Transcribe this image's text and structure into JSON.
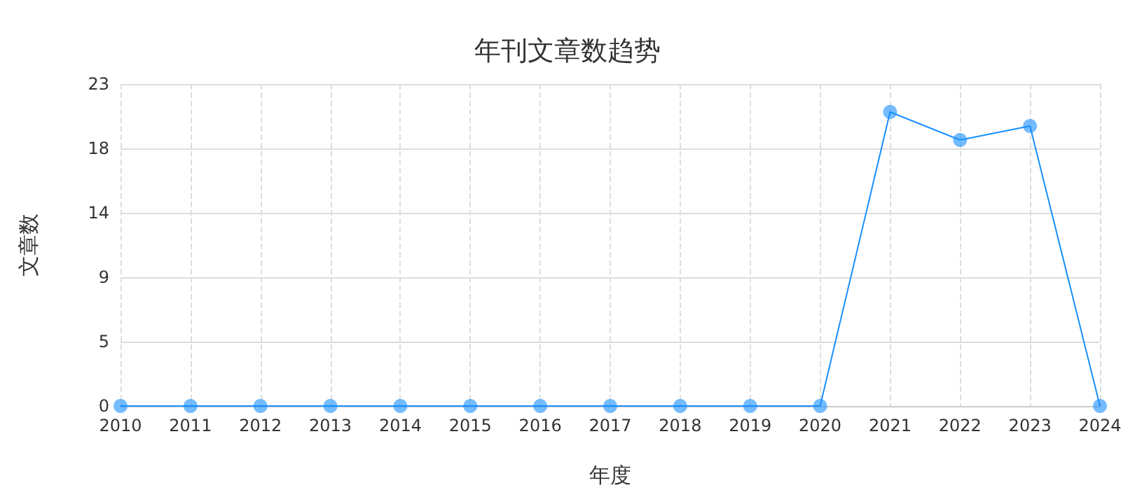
{
  "chart_data": {
    "type": "line",
    "title": "年刊文章数趋势",
    "xlabel": "年度",
    "ylabel": "文章数",
    "categories": [
      "2010",
      "2011",
      "2012",
      "2013",
      "2014",
      "2015",
      "2016",
      "2017",
      "2018",
      "2019",
      "2020",
      "2021",
      "2022",
      "2023",
      "2024"
    ],
    "series": [
      {
        "color": "#1890ff",
        "values": [
          0,
          0,
          0,
          0,
          0,
          0,
          0,
          0,
          0,
          0,
          0,
          21,
          19,
          20,
          0
        ]
      }
    ],
    "ylim": [
      0,
      23
    ],
    "yticks": [
      {
        "value": 0,
        "label": "0"
      },
      {
        "value": 4.6,
        "label": "5"
      },
      {
        "value": 9.2,
        "label": "9"
      },
      {
        "value": 13.8,
        "label": "14"
      },
      {
        "value": 18.4,
        "label": "18"
      },
      {
        "value": 23,
        "label": "23"
      }
    ],
    "grid": true,
    "marker": "circle",
    "line_style": "solid"
  }
}
